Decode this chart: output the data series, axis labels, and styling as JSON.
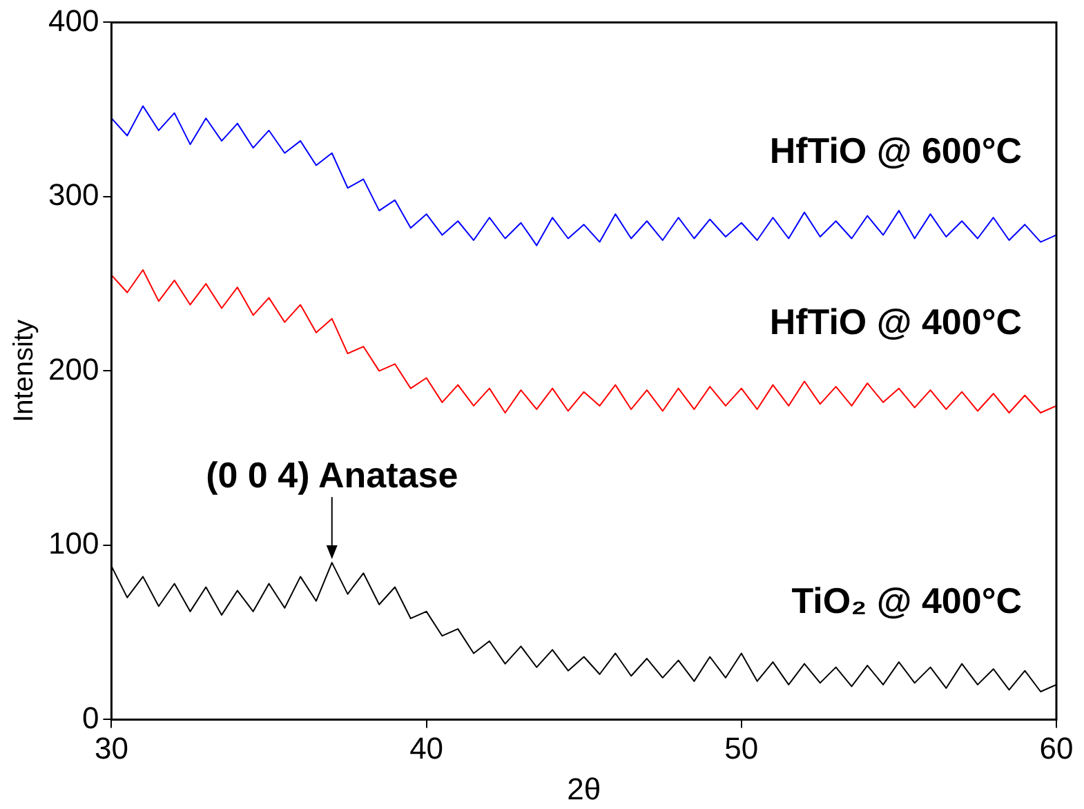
{
  "chart_data": {
    "type": "line",
    "xlabel": "2θ",
    "ylabel": "Intensity",
    "xlim": [
      30,
      60
    ],
    "xticks": [
      30,
      40,
      50,
      60
    ],
    "ylim": [
      0,
      400
    ],
    "yticks": [
      0,
      100,
      200,
      300,
      400
    ],
    "grid": false,
    "legend": false,
    "marker": "none",
    "line_style": "solid",
    "x": [
      30,
      30.5,
      31,
      31.5,
      32,
      32.5,
      33,
      33.5,
      34,
      34.5,
      35,
      35.5,
      36,
      36.5,
      37,
      37.5,
      38,
      38.5,
      39,
      39.5,
      40,
      40.5,
      41,
      41.5,
      42,
      42.5,
      43,
      43.5,
      44,
      44.5,
      45,
      45.5,
      46,
      46.5,
      47,
      47.5,
      48,
      48.5,
      49,
      49.5,
      50,
      50.5,
      51,
      51.5,
      52,
      52.5,
      53,
      53.5,
      54,
      54.5,
      55,
      55.5,
      56,
      56.5,
      57,
      57.5,
      58,
      58.5,
      59,
      59.5,
      60
    ],
    "series": [
      {
        "name": "HfTiO @ 600°C",
        "color": "#0000ff",
        "values": [
          345,
          335,
          352,
          338,
          348,
          330,
          345,
          332,
          342,
          328,
          338,
          325,
          332,
          318,
          325,
          305,
          310,
          292,
          298,
          282,
          290,
          278,
          286,
          275,
          288,
          276,
          285,
          272,
          288,
          276,
          284,
          274,
          290,
          276,
          286,
          275,
          288,
          276,
          287,
          277,
          285,
          275,
          288,
          276,
          291,
          277,
          286,
          276,
          289,
          278,
          292,
          276,
          290,
          277,
          286,
          276,
          288,
          275,
          284,
          274,
          278
        ]
      },
      {
        "name": "HfTiO @ 400°C",
        "color": "#ff0000",
        "values": [
          255,
          245,
          258,
          240,
          252,
          238,
          250,
          236,
          248,
          232,
          242,
          228,
          238,
          222,
          230,
          210,
          214,
          200,
          204,
          190,
          196,
          182,
          192,
          180,
          190,
          176,
          189,
          178,
          190,
          177,
          188,
          180,
          192,
          178,
          189,
          177,
          190,
          178,
          191,
          180,
          190,
          178,
          192,
          180,
          194,
          181,
          191,
          180,
          193,
          182,
          190,
          179,
          189,
          178,
          188,
          177,
          187,
          176,
          186,
          176,
          180
        ]
      },
      {
        "name": "TiO₂ @ 400°C",
        "color": "#000000",
        "values": [
          88,
          70,
          82,
          65,
          78,
          62,
          76,
          60,
          74,
          62,
          78,
          64,
          82,
          68,
          90,
          72,
          84,
          66,
          76,
          58,
          62,
          48,
          52,
          38,
          45,
          32,
          42,
          30,
          40,
          28,
          36,
          26,
          38,
          25,
          35,
          24,
          34,
          22,
          36,
          24,
          38,
          22,
          33,
          20,
          32,
          21,
          30,
          19,
          31,
          20,
          33,
          21,
          30,
          18,
          32,
          20,
          29,
          17,
          28,
          16,
          20
        ]
      }
    ],
    "annotations": [
      {
        "text": "(0 0 4) Anatase",
        "x": 37,
        "y": 92
      }
    ]
  }
}
